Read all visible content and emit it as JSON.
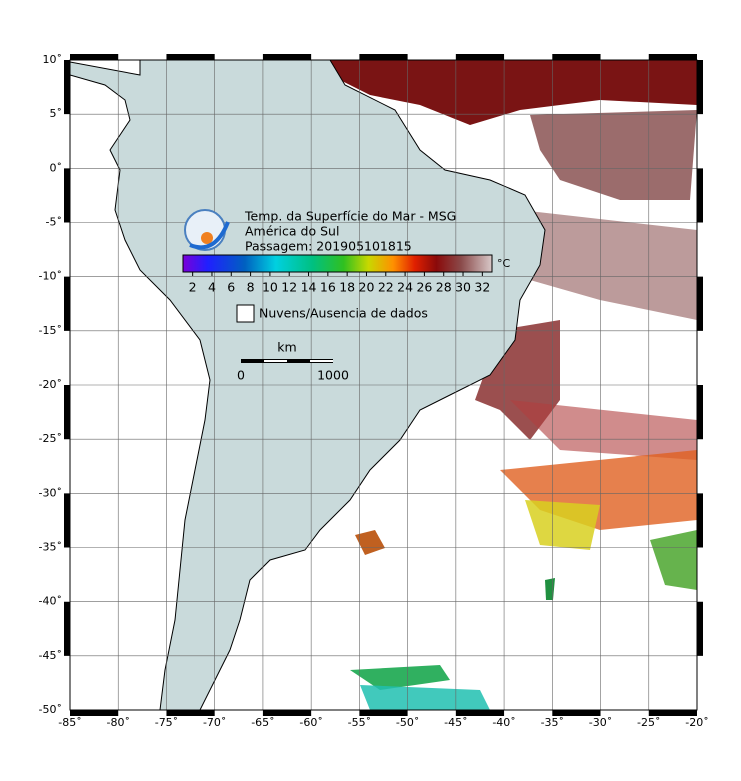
{
  "map": {
    "title_lines": [
      "Temp. da Superfície do Mar - MSG",
      "América do Sul",
      "Passagem: 201905101815"
    ],
    "colorbar": {
      "unit": "°C",
      "lim": [
        1,
        33
      ],
      "ticks": [
        2,
        4,
        6,
        8,
        10,
        12,
        14,
        16,
        18,
        20,
        22,
        24,
        26,
        28,
        30,
        32
      ]
    },
    "legend": "Nuvens/Ausencia de dados",
    "scale_bar": {
      "unit": "km",
      "start": "0",
      "end": "1000"
    },
    "xlim": [
      -85,
      -20
    ],
    "ylim": [
      -50,
      10
    ],
    "xticks": [
      {
        "value": -85,
        "label": "-85˚"
      },
      {
        "value": -80,
        "label": "-80˚"
      },
      {
        "value": -75,
        "label": "-75˚"
      },
      {
        "value": -70,
        "label": "-70˚"
      },
      {
        "value": -65,
        "label": "-65˚"
      },
      {
        "value": -60,
        "label": "-60˚"
      },
      {
        "value": -55,
        "label": "-55˚"
      },
      {
        "value": -50,
        "label": "-50˚"
      },
      {
        "value": -45,
        "label": "-45˚"
      },
      {
        "value": -40,
        "label": "-40˚"
      },
      {
        "value": -35,
        "label": "-35˚"
      },
      {
        "value": -30,
        "label": "-30˚"
      },
      {
        "value": -25,
        "label": "-25˚"
      },
      {
        "value": -20,
        "label": "-20˚"
      }
    ],
    "yticks": [
      {
        "value": 10,
        "label": "10˚"
      },
      {
        "value": 5,
        "label": "5˚"
      },
      {
        "value": 0,
        "label": "0˚"
      },
      {
        "value": -5,
        "label": "-5˚"
      },
      {
        "value": -10,
        "label": "-10˚"
      },
      {
        "value": -15,
        "label": "-15˚"
      },
      {
        "value": -20,
        "label": "-20˚"
      },
      {
        "value": -25,
        "label": "-25˚"
      },
      {
        "value": -30,
        "label": "-30˚"
      },
      {
        "value": -35,
        "label": "-35˚"
      },
      {
        "value": -40,
        "label": "-40˚"
      },
      {
        "value": -45,
        "label": "-45˚"
      },
      {
        "value": -50,
        "label": "-50˚"
      }
    ]
  }
}
